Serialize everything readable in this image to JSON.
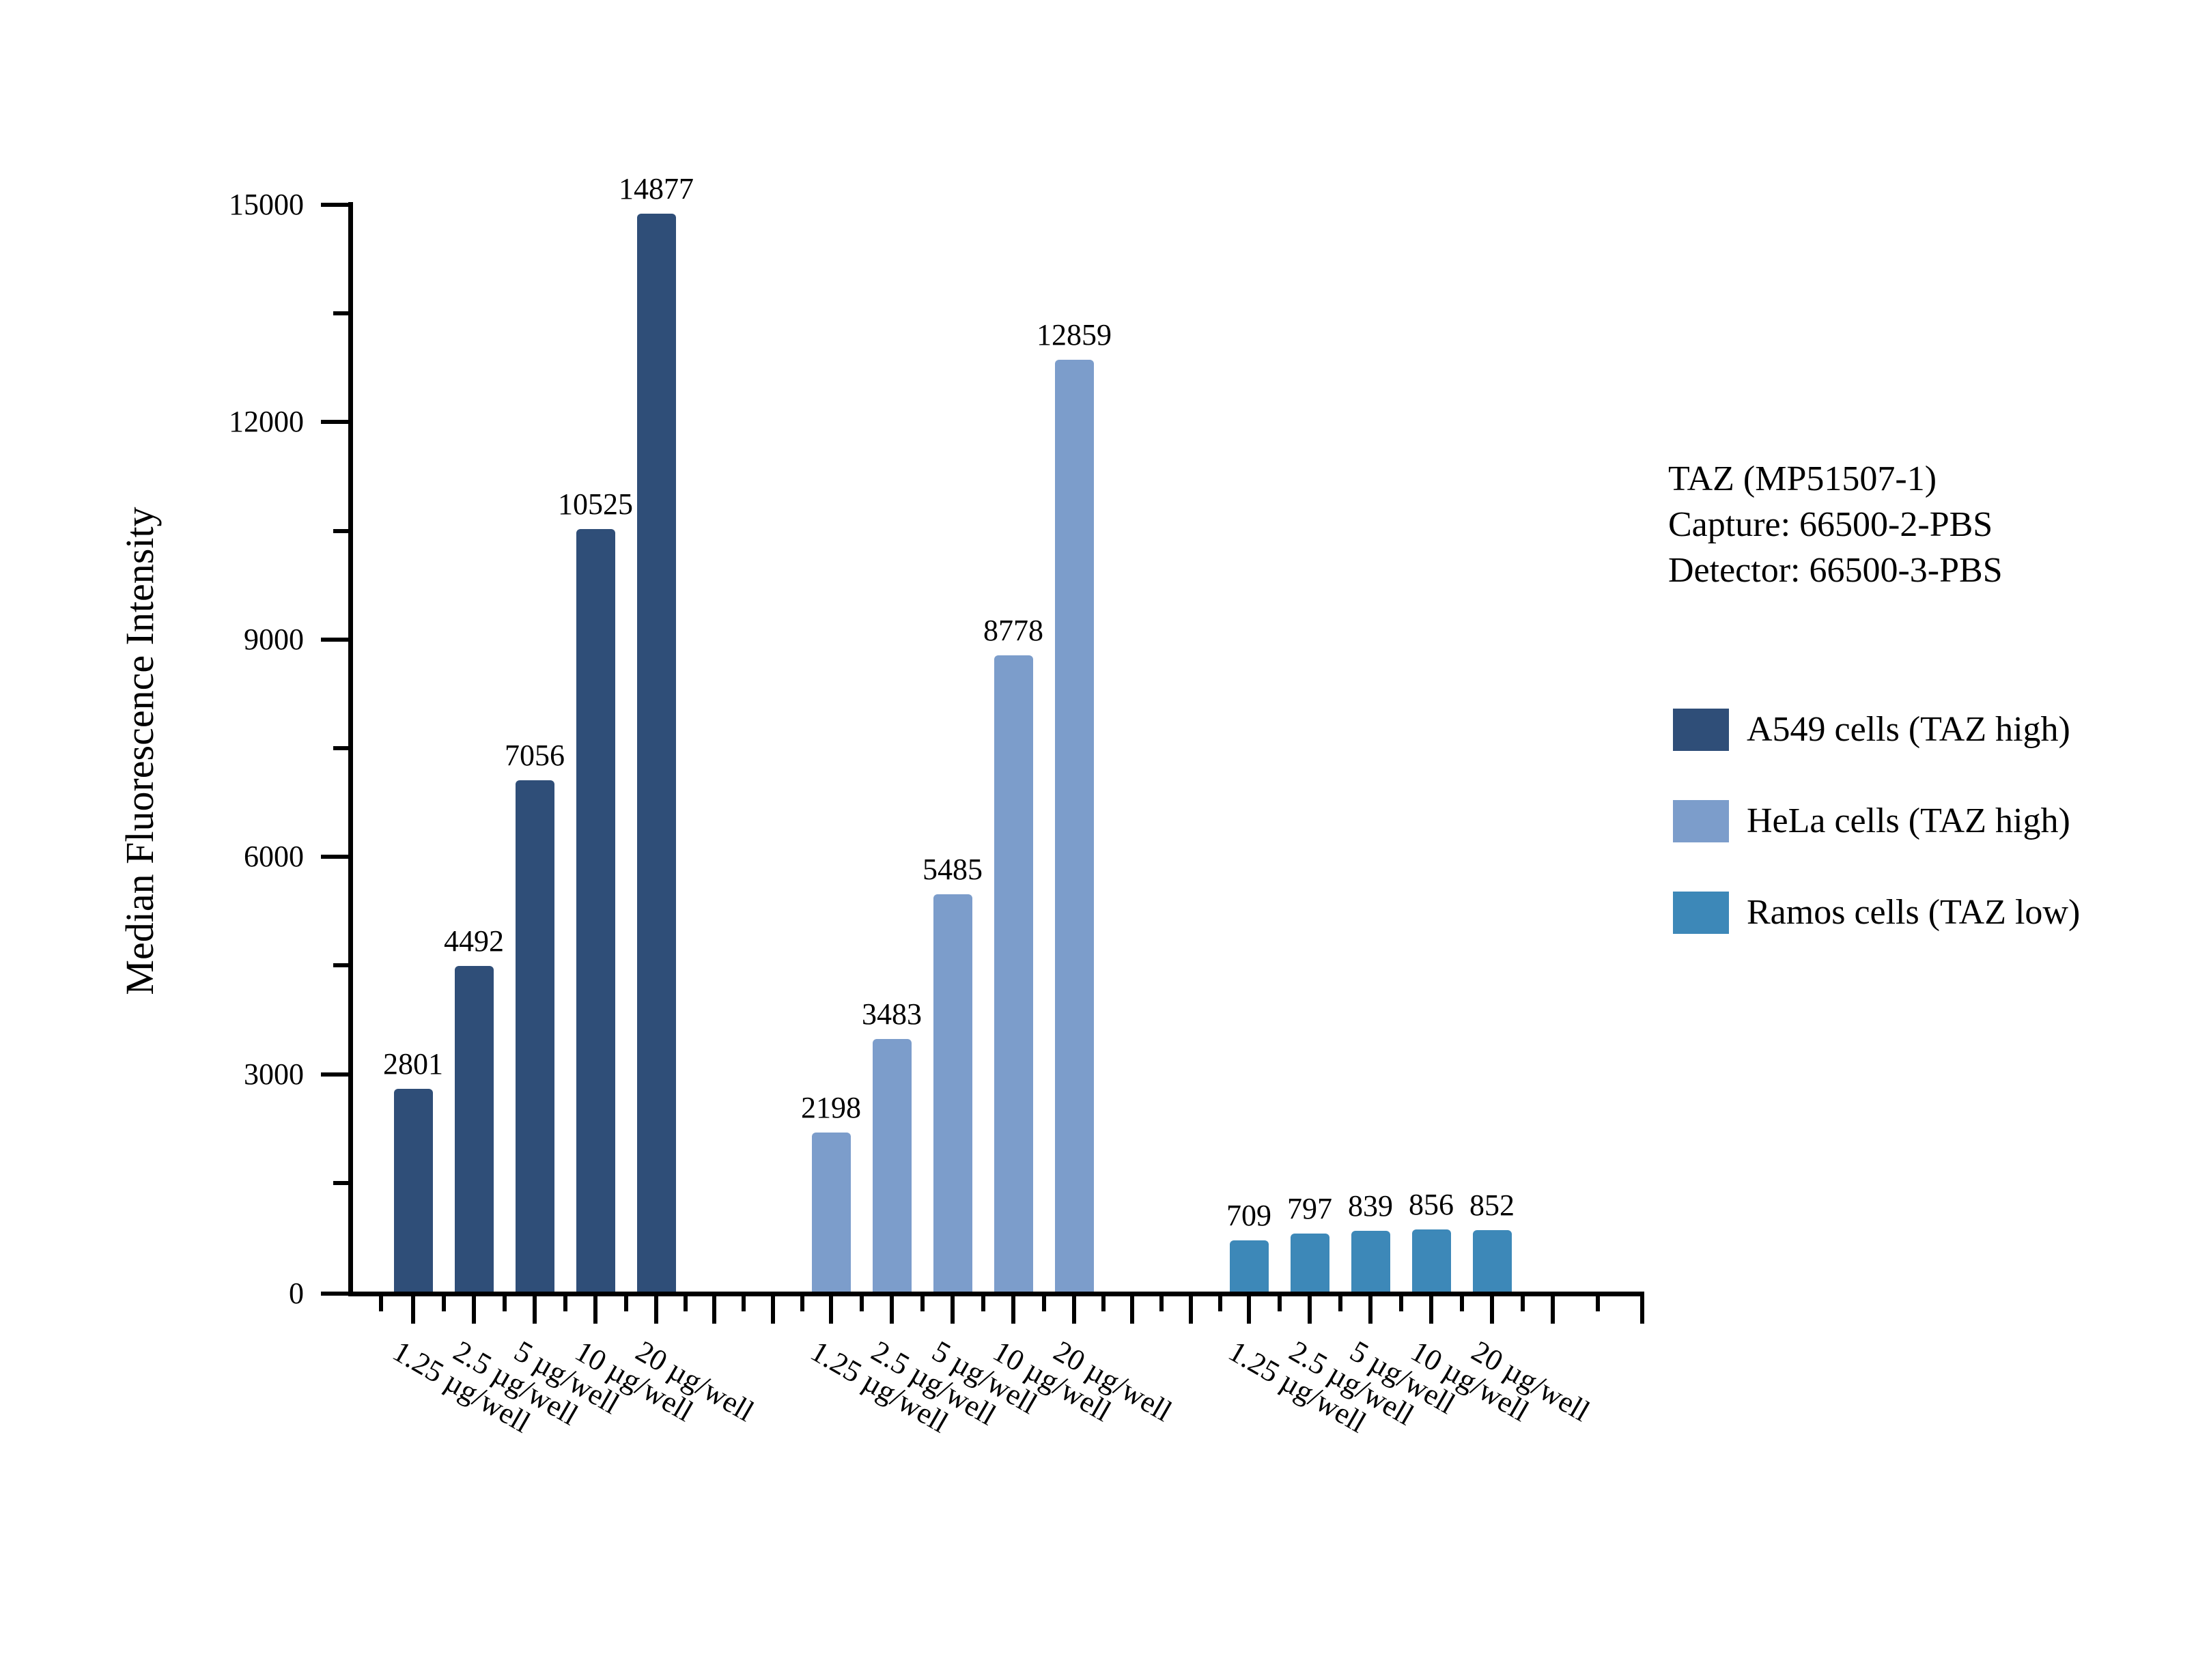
{
  "figure": {
    "background": "#FFFFFF"
  },
  "y_axis": {
    "title": "Median Fluorescence Intensity",
    "tick_labels": [
      "0",
      "3000",
      "6000",
      "9000",
      "12000",
      "15000"
    ]
  },
  "x_axis": {
    "category_labels": [
      "1.25 µg/well",
      "2.5 µg/well",
      "5 µg/well",
      "10 µg/well",
      "20 µg/well"
    ]
  },
  "annotation": {
    "lines": [
      "TAZ (MP51507-1)",
      "Capture: 66500-2-PBS",
      "Detector: 66500-3-PBS"
    ]
  },
  "legend": {
    "items": [
      {
        "label": "A549 cells (TAZ high)",
        "color": "#2F4E78"
      },
      {
        "label": "HeLa cells (TAZ high)",
        "color": "#7C9DCB"
      },
      {
        "label": "Ramos cells (TAZ low)",
        "color": "#3D88B8"
      }
    ]
  },
  "chart_data": {
    "type": "bar",
    "title": "",
    "xlabel": "",
    "ylabel": "Median Fluorescence Intensity",
    "ylim": [
      0,
      15000
    ],
    "y_major_step": 3000,
    "y_minor_step": 1500,
    "grid": false,
    "legend_position": "right",
    "value_labels": true,
    "categories": [
      "1.25 µg/well",
      "2.5 µg/well",
      "5 µg/well",
      "10 µg/well",
      "20 µg/well"
    ],
    "series": [
      {
        "name": "A549 cells (TAZ high)",
        "color": "#2F4E78",
        "values": [
          2801,
          4492,
          7056,
          10525,
          14877
        ]
      },
      {
        "name": "HeLa cells (TAZ high)",
        "color": "#7C9DCB",
        "values": [
          2198,
          3483,
          5485,
          8778,
          12859
        ]
      },
      {
        "name": "Ramos cells (TAZ low)",
        "color": "#3D88B8",
        "values": [
          709,
          797,
          839,
          856,
          852
        ]
      }
    ]
  }
}
